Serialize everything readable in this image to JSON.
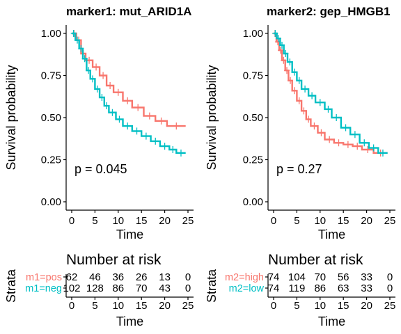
{
  "panels": [
    {
      "title": "marker1: mut_ARID1A",
      "p_value": "p = 0.045",
      "risk_title": "Number at risk",
      "strata_axis_label": "Strata",
      "risk_xlabel": "Time",
      "strata": [
        {
          "label": "m1=pos",
          "color": "#F8766D",
          "counts": [
            "62",
            "46",
            "36",
            "26",
            "13",
            "0"
          ]
        },
        {
          "label": "m1=neg",
          "color": "#00BFC4",
          "counts": [
            "102",
            "128",
            "86",
            "70",
            "43",
            "0"
          ]
        }
      ]
    },
    {
      "title": "marker2: gep_HMGB1",
      "p_value": "p = 0.27",
      "risk_title": "Number at risk",
      "strata_axis_label": "Strata",
      "risk_xlabel": "Time",
      "strata": [
        {
          "label": "m2=high",
          "color": "#F8766D",
          "counts": [
            "74",
            "104",
            "70",
            "56",
            "33",
            "0"
          ]
        },
        {
          "label": "m2=low",
          "color": "#00BFC4",
          "counts": [
            "74",
            "119",
            "86",
            "63",
            "33",
            "0"
          ]
        }
      ]
    }
  ],
  "chart_data": [
    {
      "type": "line",
      "title": "marker1: mut_ARID1A",
      "xlabel": "Time",
      "ylabel": "Survival probability",
      "xlim": [
        0,
        25
      ],
      "ylim": [
        0,
        1
      ],
      "x_ticks": [
        "0",
        "5",
        "10",
        "15",
        "20",
        "25"
      ],
      "y_ticks": [
        "0.00",
        "0.25",
        "0.50",
        "0.75",
        "1.00"
      ],
      "series": [
        {
          "name": "m1=pos",
          "color": "#F8766D",
          "step": true,
          "x": [
            0,
            1.0,
            2.0,
            3.0,
            4.5,
            6.0,
            7.5,
            9.0,
            11.0,
            13.0,
            15.5,
            18.0,
            20.5,
            24.5
          ],
          "y": [
            1.0,
            0.96,
            0.88,
            0.84,
            0.8,
            0.75,
            0.69,
            0.65,
            0.6,
            0.56,
            0.51,
            0.48,
            0.45,
            0.45
          ]
        },
        {
          "name": "m1=neg",
          "color": "#00BFC4",
          "step": true,
          "x": [
            0,
            0.8,
            1.6,
            2.4,
            3.2,
            4.0,
            5.0,
            6.0,
            7.0,
            8.0,
            9.5,
            11.0,
            13.0,
            15.0,
            17.0,
            19.0,
            21.0,
            22.5,
            24.5
          ],
          "y": [
            1.0,
            0.96,
            0.91,
            0.85,
            0.78,
            0.73,
            0.67,
            0.62,
            0.57,
            0.53,
            0.49,
            0.45,
            0.42,
            0.39,
            0.36,
            0.33,
            0.31,
            0.29,
            0.29
          ]
        }
      ]
    },
    {
      "type": "line",
      "title": "marker2: gep_HMGB1",
      "xlabel": "Time",
      "ylabel": "Survival probability",
      "xlim": [
        0,
        25
      ],
      "ylim": [
        0,
        1
      ],
      "x_ticks": [
        "0",
        "5",
        "10",
        "15",
        "20",
        "25"
      ],
      "y_ticks": [
        "0.00",
        "0.25",
        "0.50",
        "0.75",
        "1.00"
      ],
      "series": [
        {
          "name": "m2=high",
          "color": "#F8766D",
          "step": true,
          "x": [
            0,
            0.6,
            1.2,
            1.8,
            2.5,
            3.2,
            4.0,
            5.0,
            6.0,
            7.0,
            8.0,
            9.5,
            11.0,
            13.0,
            15.0,
            17.0,
            19.0,
            21.5,
            24.5
          ],
          "y": [
            1.0,
            0.95,
            0.9,
            0.84,
            0.78,
            0.72,
            0.66,
            0.6,
            0.54,
            0.49,
            0.45,
            0.41,
            0.37,
            0.35,
            0.34,
            0.33,
            0.31,
            0.29,
            0.29
          ]
        },
        {
          "name": "m2=low",
          "color": "#00BFC4",
          "step": true,
          "x": [
            0,
            0.7,
            1.4,
            2.2,
            3.0,
            4.0,
            5.0,
            6.0,
            7.5,
            9.0,
            11.0,
            12.5,
            14.5,
            16.5,
            18.5,
            20.5,
            22.5,
            24.5
          ],
          "y": [
            1.0,
            0.97,
            0.93,
            0.88,
            0.83,
            0.77,
            0.72,
            0.67,
            0.63,
            0.59,
            0.55,
            0.5,
            0.44,
            0.4,
            0.35,
            0.32,
            0.29,
            0.29
          ]
        }
      ]
    }
  ]
}
